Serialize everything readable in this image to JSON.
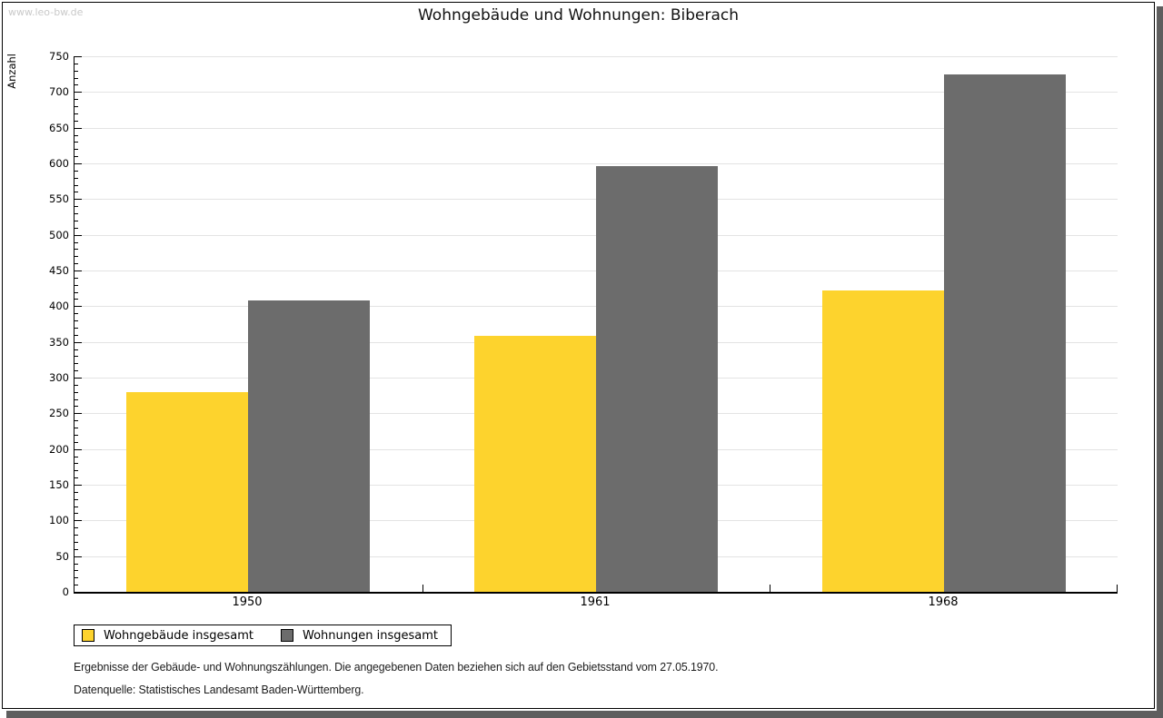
{
  "watermark": "www.leo-bw.de",
  "title": "Wohngebäude und Wohnungen: Biberach",
  "footnotes": [
    "Ergebnisse der Gebäude- und Wohnungszählungen. Die angegebenen Daten beziehen sich auf den Gebietsstand vom 27.05.1970.",
    "Datenquelle: Statistisches Landesamt Baden-Württemberg."
  ],
  "colors": {
    "series1": "#fdd32d",
    "series2": "#6c6c6c",
    "gridline": "#e3e3e3",
    "shadow": "#5e5e5e",
    "watermark": "#c9c9c9"
  },
  "chart_data": {
    "type": "bar",
    "title": "Wohngebäude und Wohnungen: Biberach",
    "ylabel": "Anzahl",
    "xlabel": "",
    "categories": [
      "1950",
      "1961",
      "1968"
    ],
    "series": [
      {
        "name": "Wohngebäude insgesamt",
        "color": "#fdd32d",
        "values": [
          280,
          359,
          422
        ]
      },
      {
        "name": "Wohnungen insgesamt",
        "color": "#6c6c6c",
        "values": [
          408,
          596,
          725
        ]
      }
    ],
    "ylim": [
      0,
      750
    ],
    "ytick_step": 50,
    "yminor_step": 10,
    "ytick_labels": [
      "0",
      "50",
      "100",
      "150",
      "200",
      "250",
      "300",
      "350",
      "400",
      "450",
      "500",
      "550",
      "600",
      "650",
      "700",
      "750"
    ],
    "grid": true,
    "legend_position": "bottom-left"
  }
}
